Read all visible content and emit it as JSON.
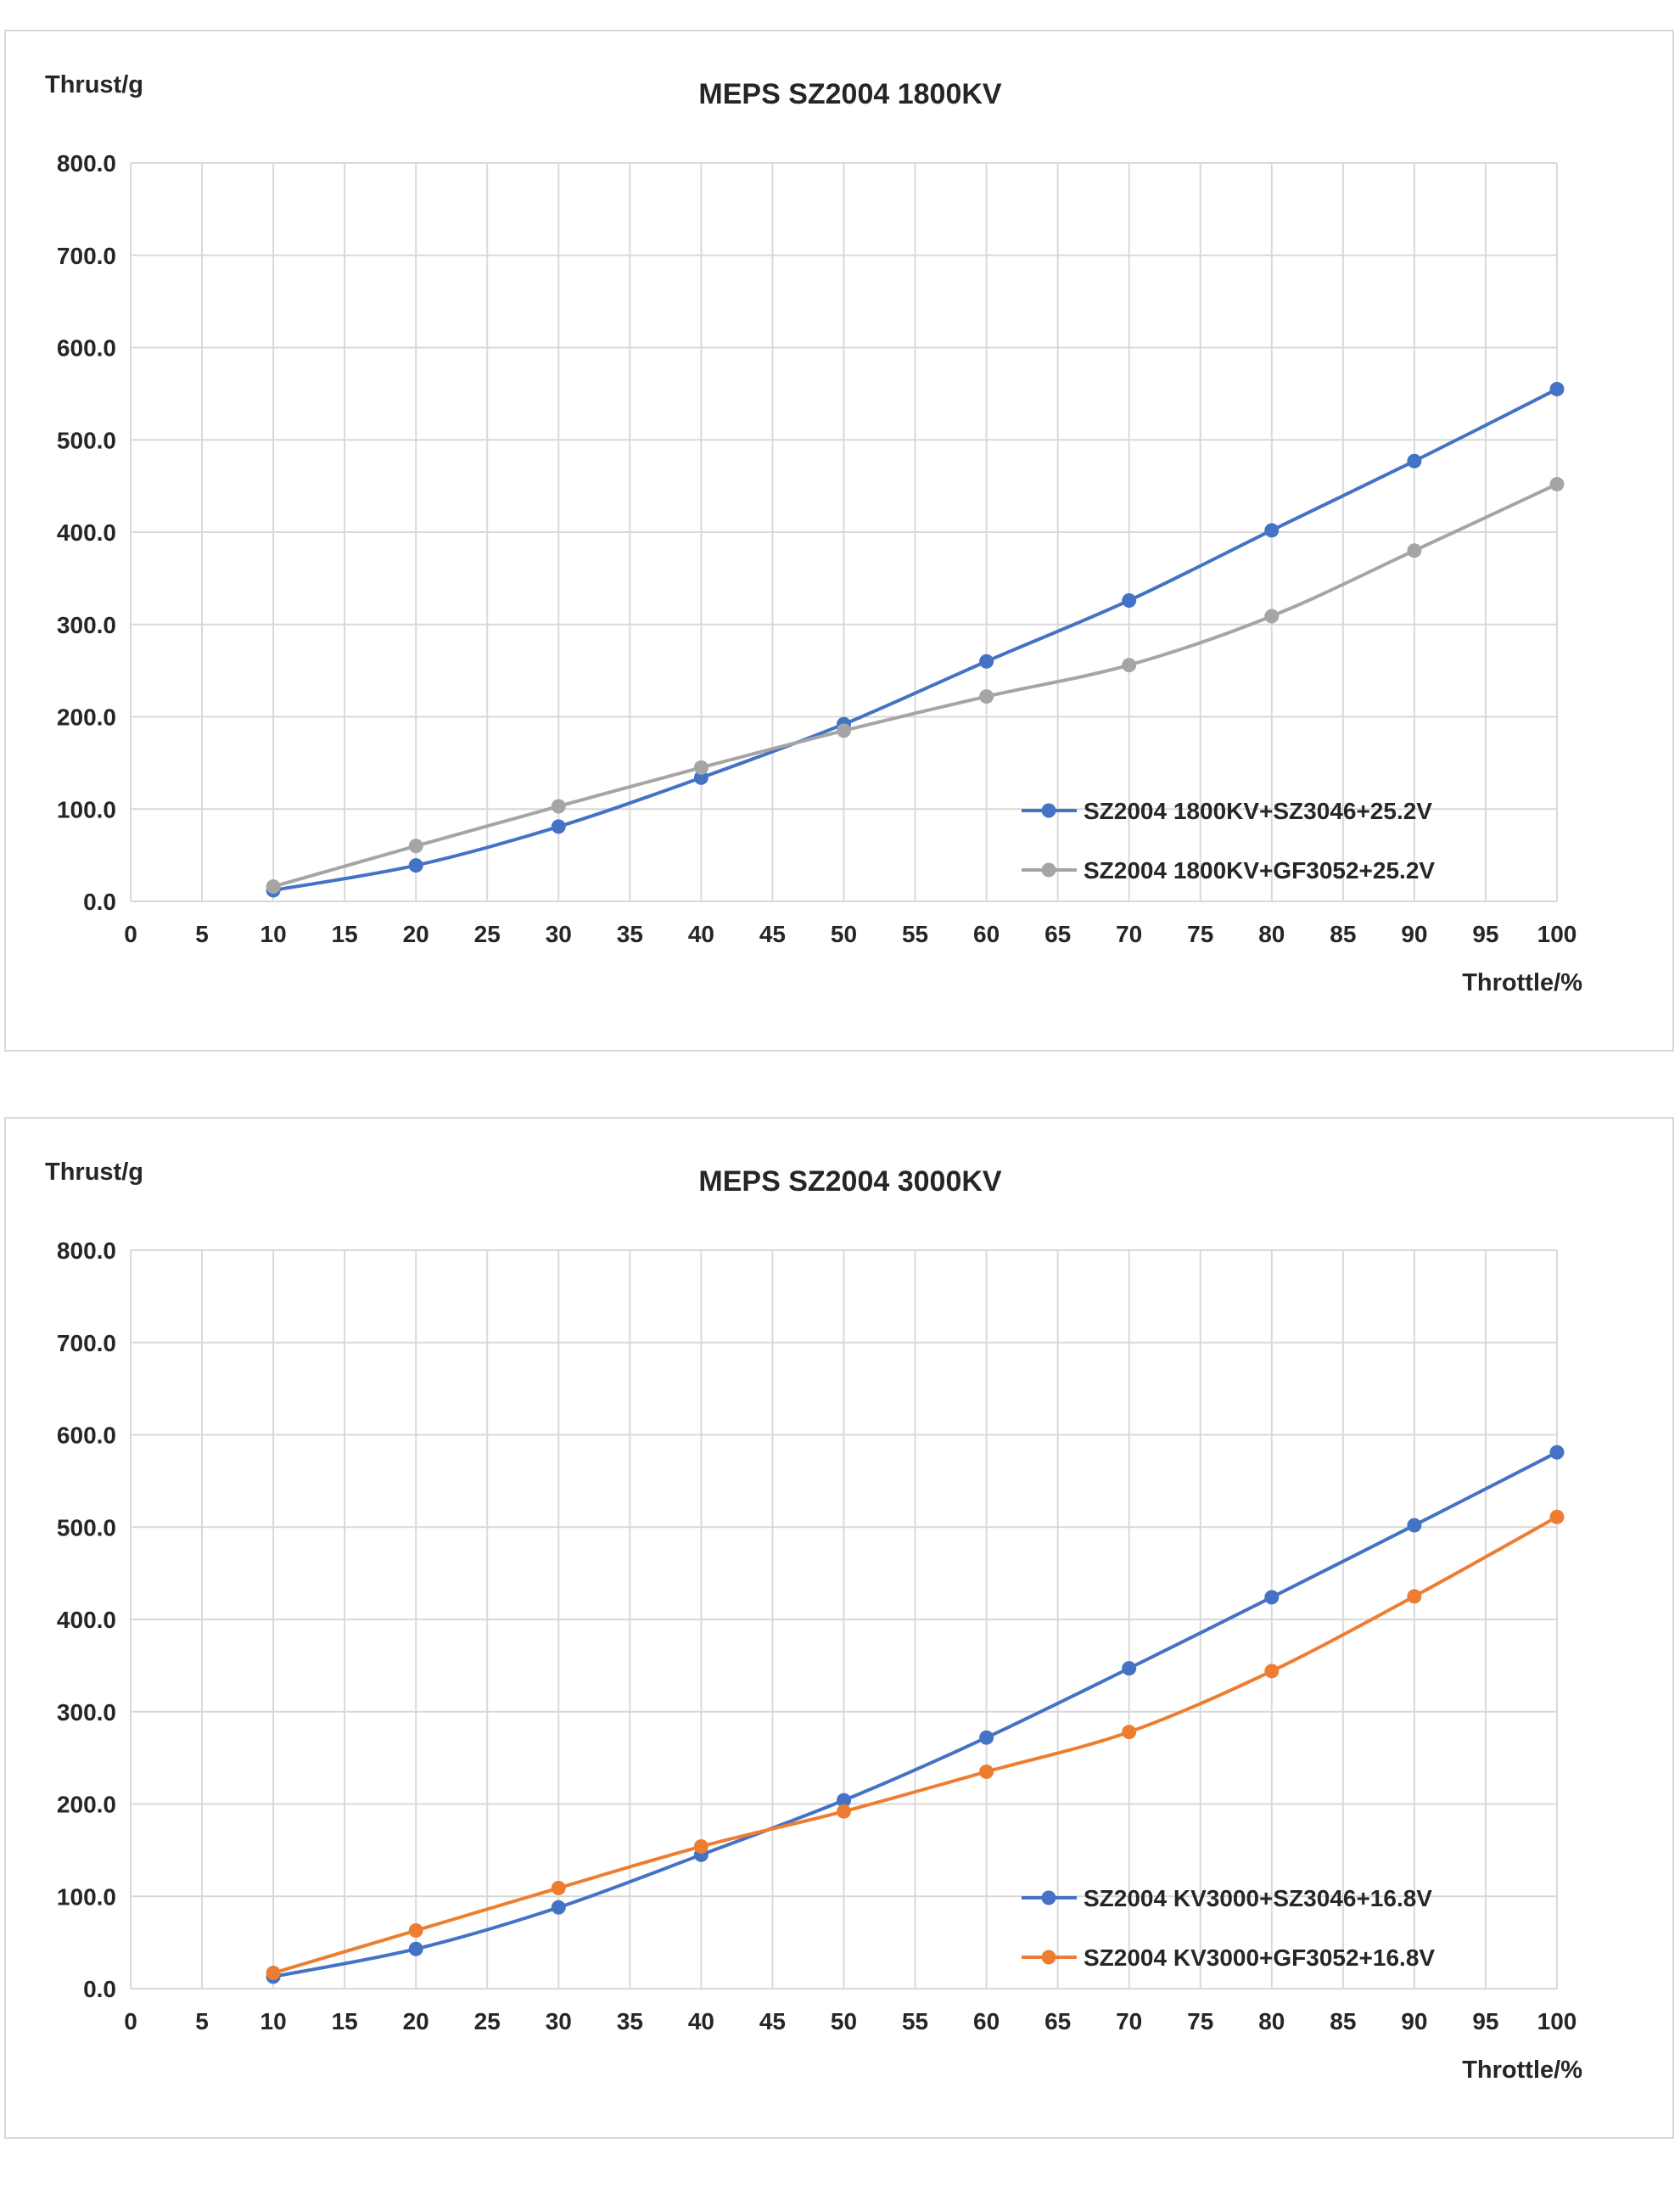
{
  "chart_data": [
    {
      "type": "line",
      "title": "MEPS SZ2004 1800KV",
      "ylabel": "Thrust/g",
      "xlabel": "Throttle/%",
      "xlim": [
        0,
        100
      ],
      "ylim": [
        0,
        800
      ],
      "x_ticks": [
        "0",
        "5",
        "10",
        "15",
        "20",
        "25",
        "30",
        "35",
        "40",
        "45",
        "50",
        "55",
        "60",
        "65",
        "70",
        "75",
        "80",
        "85",
        "90",
        "95",
        "100"
      ],
      "y_ticks": [
        "0.0",
        "100.0",
        "200.0",
        "300.0",
        "400.0",
        "500.0",
        "600.0",
        "700.0",
        "800.0"
      ],
      "grid": true,
      "legend_position": "bottom-right",
      "x": [
        10,
        20,
        30,
        40,
        50,
        60,
        70,
        80,
        90,
        100
      ],
      "series": [
        {
          "name": "SZ2004  1800KV+SZ3046+25.2V",
          "color": "#4472c4",
          "values": [
            12,
            39,
            81,
            134,
            192,
            260,
            326,
            402,
            477,
            555
          ]
        },
        {
          "name": "SZ2004  1800KV+GF3052+25.2V",
          "color": "#a5a5a5",
          "values": [
            16,
            60,
            103,
            145,
            185,
            222,
            256,
            309,
            380,
            452
          ]
        }
      ]
    },
    {
      "type": "line",
      "title": "MEPS SZ2004 3000KV",
      "ylabel": "Thrust/g",
      "xlabel": "Throttle/%",
      "xlim": [
        0,
        100
      ],
      "ylim": [
        0,
        800
      ],
      "x_ticks": [
        "0",
        "5",
        "10",
        "15",
        "20",
        "25",
        "30",
        "35",
        "40",
        "45",
        "50",
        "55",
        "60",
        "65",
        "70",
        "75",
        "80",
        "85",
        "90",
        "95",
        "100"
      ],
      "y_ticks": [
        "0.0",
        "100.0",
        "200.0",
        "300.0",
        "400.0",
        "500.0",
        "600.0",
        "700.0",
        "800.0"
      ],
      "grid": true,
      "legend_position": "bottom-right",
      "x": [
        10,
        20,
        30,
        40,
        50,
        60,
        70,
        80,
        90,
        100
      ],
      "series": [
        {
          "name": "SZ2004  KV3000+SZ3046+16.8V",
          "color": "#4472c4",
          "values": [
            13,
            43,
            88,
            145,
            204,
            272,
            347,
            424,
            502,
            581
          ]
        },
        {
          "name": "SZ2004  KV3000+GF3052+16.8V",
          "color": "#ed7d31",
          "values": [
            17,
            63,
            109,
            154,
            192,
            235,
            278,
            344,
            425,
            511
          ]
        }
      ]
    }
  ]
}
